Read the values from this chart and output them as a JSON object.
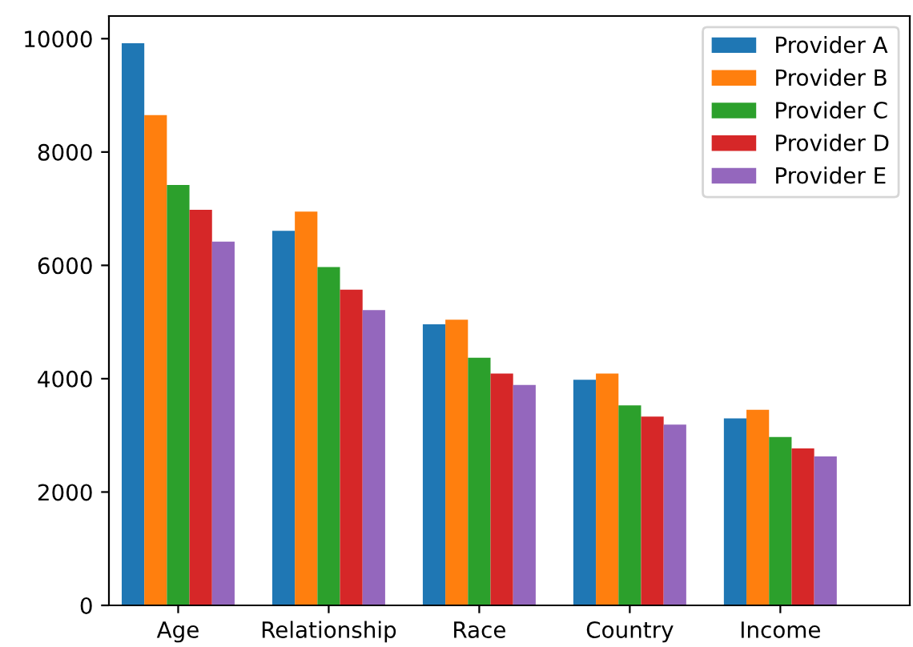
{
  "chart_data": {
    "type": "bar",
    "categories": [
      "Age",
      "Relationship",
      "Race",
      "Country",
      "Income"
    ],
    "series": [
      {
        "name": "Provider A",
        "color": "#1f77b4",
        "values": [
          9920,
          6610,
          4960,
          3980,
          3300
        ]
      },
      {
        "name": "Provider B",
        "color": "#ff7f0e",
        "values": [
          8650,
          6950,
          5040,
          4090,
          3450
        ]
      },
      {
        "name": "Provider C",
        "color": "#2ca02c",
        "values": [
          7420,
          5970,
          4370,
          3530,
          2970
        ]
      },
      {
        "name": "Provider D",
        "color": "#d62728",
        "values": [
          6980,
          5570,
          4090,
          3330,
          2770
        ]
      },
      {
        "name": "Provider E",
        "color": "#9467bd",
        "values": [
          6420,
          5210,
          3890,
          3190,
          2630
        ]
      }
    ],
    "ylim": [
      0,
      10400
    ],
    "yticks": [
      0,
      2000,
      4000,
      6000,
      8000,
      10000
    ],
    "legend": "top right",
    "grid": false
  }
}
